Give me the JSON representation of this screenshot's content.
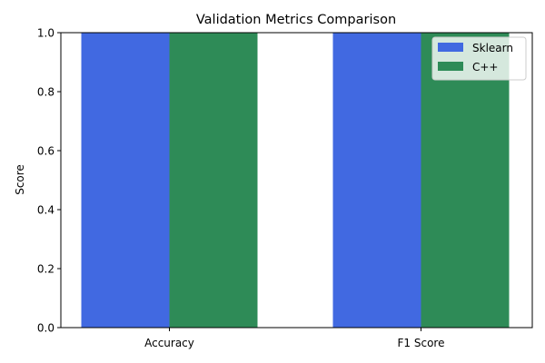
{
  "chart_data": {
    "type": "bar",
    "title": "Validation Metrics Comparison",
    "xlabel": "",
    "ylabel": "Score",
    "categories": [
      "Accuracy",
      "F1 Score"
    ],
    "series": [
      {
        "name": "Sklearn",
        "values": [
          1.0,
          1.0
        ],
        "color": "#4169e1"
      },
      {
        "name": "C++",
        "values": [
          1.0,
          1.0
        ],
        "color": "#2e8b57"
      }
    ],
    "ylim": [
      0,
      1
    ],
    "yticks": [
      "0.0",
      "0.2",
      "0.4",
      "0.6",
      "0.8",
      "1.0"
    ],
    "grid": false,
    "legend_position": "top-right"
  }
}
